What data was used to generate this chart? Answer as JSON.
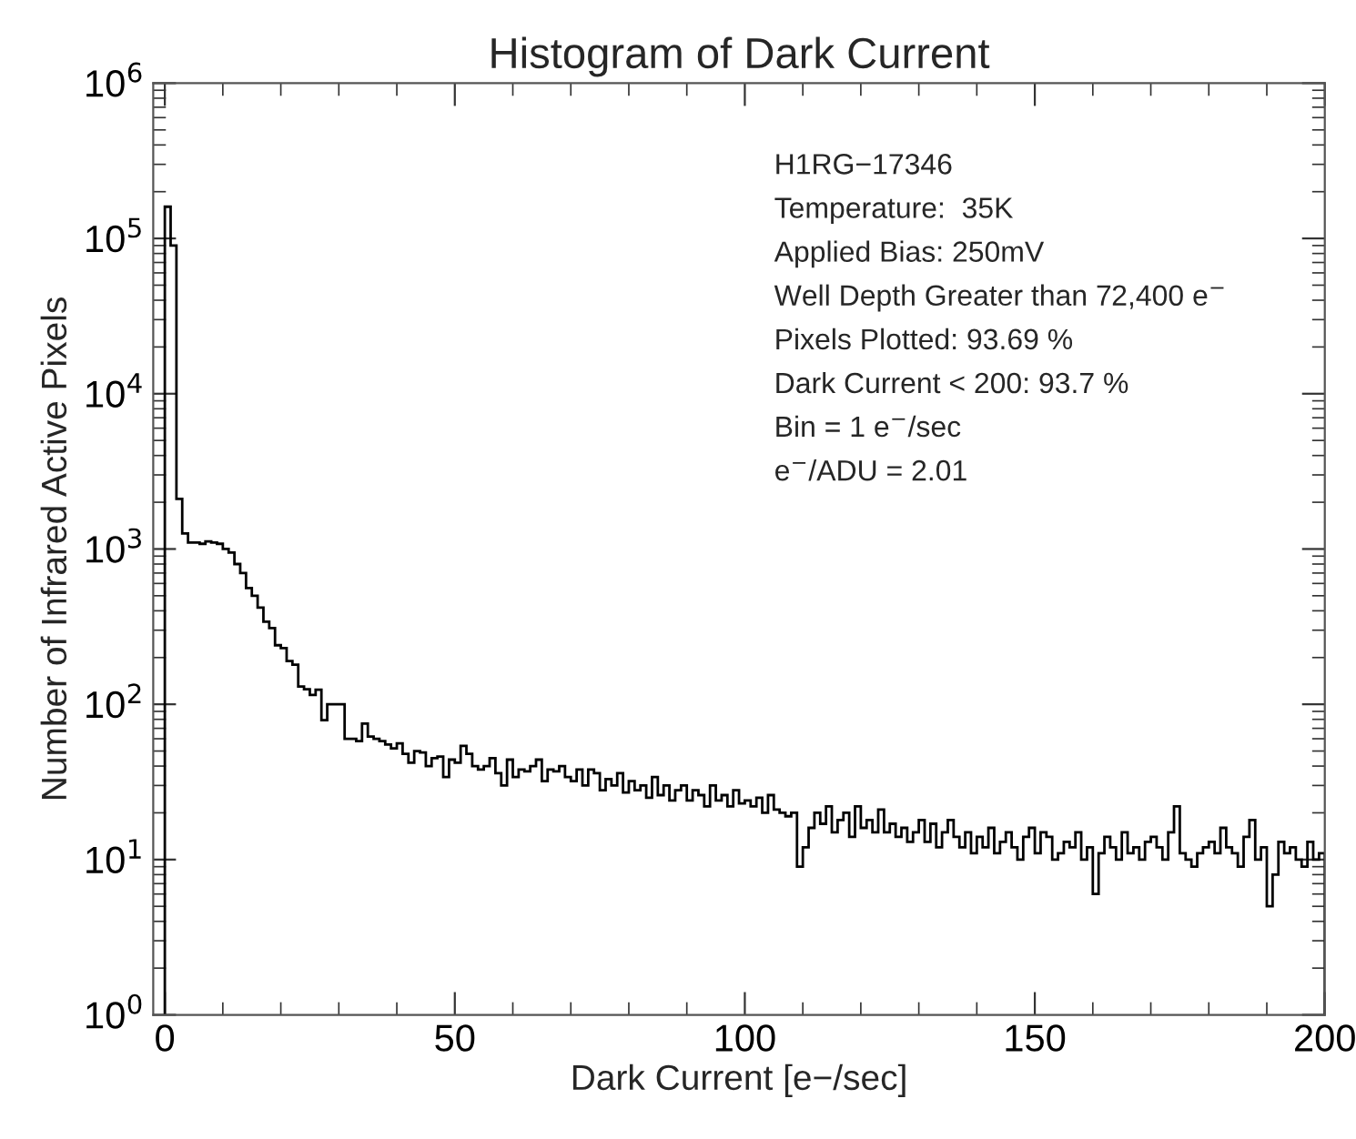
{
  "chart_data": {
    "type": "histogram",
    "title": "Histogram of Dark Current",
    "xlabel": "Dark Current [e−/sec]",
    "ylabel": "Number of Infrared Active Pixels",
    "bins": [
      0,
      1,
      2,
      3,
      4,
      5,
      6,
      7,
      8,
      9,
      10,
      11,
      12,
      13,
      14,
      15,
      16,
      17,
      18,
      19,
      20,
      21,
      22,
      23,
      24,
      25,
      26,
      27,
      28,
      29,
      30,
      31,
      32,
      33,
      34,
      35,
      36,
      37,
      38,
      39,
      40,
      41,
      42,
      43,
      44,
      45,
      46,
      47,
      48,
      49,
      50,
      51,
      52,
      53,
      54,
      55,
      56,
      57,
      58,
      59,
      60,
      61,
      62,
      63,
      64,
      65,
      66,
      67,
      68,
      69,
      70,
      71,
      72,
      73,
      74,
      75,
      76,
      77,
      78,
      79,
      80,
      81,
      82,
      83,
      84,
      85,
      86,
      87,
      88,
      89,
      90,
      91,
      92,
      93,
      94,
      95,
      96,
      97,
      98,
      99,
      100,
      101,
      102,
      103,
      104,
      105,
      106,
      107,
      108,
      109,
      110,
      111,
      112,
      113,
      114,
      115,
      116,
      117,
      118,
      119,
      120,
      121,
      122,
      123,
      124,
      125,
      126,
      127,
      128,
      129,
      130,
      131,
      132,
      133,
      134,
      135,
      136,
      137,
      138,
      139,
      140,
      141,
      142,
      143,
      144,
      145,
      146,
      147,
      148,
      149,
      150,
      151,
      152,
      153,
      154,
      155,
      156,
      157,
      158,
      159,
      160,
      161,
      162,
      163,
      164,
      165,
      166,
      167,
      168,
      169,
      170,
      171,
      172,
      173,
      174,
      175,
      176,
      177,
      178,
      179,
      180,
      181,
      182,
      183,
      184,
      185,
      186,
      187,
      188,
      189,
      190,
      191,
      192,
      193,
      194,
      195,
      196,
      197,
      198,
      199,
      200
    ],
    "values": [
      160000,
      90000,
      2100,
      1260,
      1100,
      1100,
      1080,
      1120,
      1100,
      1080,
      1000,
      950,
      800,
      700,
      560,
      500,
      420,
      340,
      310,
      240,
      230,
      190,
      180,
      130,
      125,
      115,
      124,
      79,
      100,
      100,
      100,
      60,
      60,
      58,
      75,
      62,
      60,
      58,
      55,
      52,
      56,
      48,
      42,
      50,
      49,
      40,
      45,
      46,
      34,
      44,
      42,
      54,
      48,
      40,
      38,
      40,
      45,
      36,
      30,
      44,
      34,
      38,
      37,
      40,
      44,
      32,
      38,
      37,
      40,
      34,
      32,
      38,
      30,
      38,
      36,
      28,
      33,
      30,
      36,
      27,
      32,
      28,
      30,
      25,
      34,
      26,
      30,
      24,
      28,
      30,
      24,
      28,
      26,
      22,
      30,
      24,
      26,
      22,
      28,
      23,
      24,
      22,
      25,
      20,
      26,
      21,
      20,
      19,
      20,
      9,
      12,
      16,
      20,
      17,
      22,
      15,
      18,
      20,
      14,
      22,
      16,
      18,
      15,
      21,
      15,
      17,
      14,
      16,
      13,
      15,
      18,
      13,
      17,
      12,
      15,
      18,
      14,
      12,
      15,
      11,
      14,
      12,
      16,
      11,
      13,
      15,
      12,
      10,
      14,
      16,
      11,
      15,
      14,
      10,
      11,
      13,
      12,
      15,
      10,
      12,
      6,
      11,
      14,
      12,
      10,
      15,
      11,
      12,
      10,
      13,
      14,
      12,
      10,
      15,
      22,
      11,
      10,
      9,
      11,
      12,
      13,
      11,
      16,
      12,
      11,
      9,
      14,
      18,
      10,
      12,
      5,
      8,
      13,
      11,
      12,
      10,
      9,
      13,
      10,
      11
    ],
    "color": "#000000",
    "log": true,
    "grid": false,
    "xlim": [
      -2,
      200
    ],
    "xticks": [
      0,
      50,
      100,
      150,
      200
    ],
    "ylim": [
      1,
      1000000
    ],
    "yticks": [
      {
        "value": 1,
        "label": "10$^{0}$"
      },
      {
        "value": 10,
        "label": "10$^{1}$"
      },
      {
        "value": 100,
        "label": "10$^{2}$"
      },
      {
        "value": 1000,
        "label": "10$^{3}$"
      },
      {
        "value": 10000,
        "label": "10$^{4}$"
      },
      {
        "value": 100000,
        "label": "10$^{5}$"
      },
      {
        "value": 1000000,
        "label": "10$^{6}$"
      }
    ],
    "annotations": [
      "H1RG−17346",
      "Temperature:  35K",
      "Applied Bias: 250mV",
      "Well Depth Greater than 72,400 e$^{−}$",
      "Pixels Plotted: 93.69 %",
      "Dark Current < 200: 93.7 %",
      "Bin = 1 e$^{−}$/sec",
      "e$^{−}$/ADU = 2.01"
    ]
  }
}
